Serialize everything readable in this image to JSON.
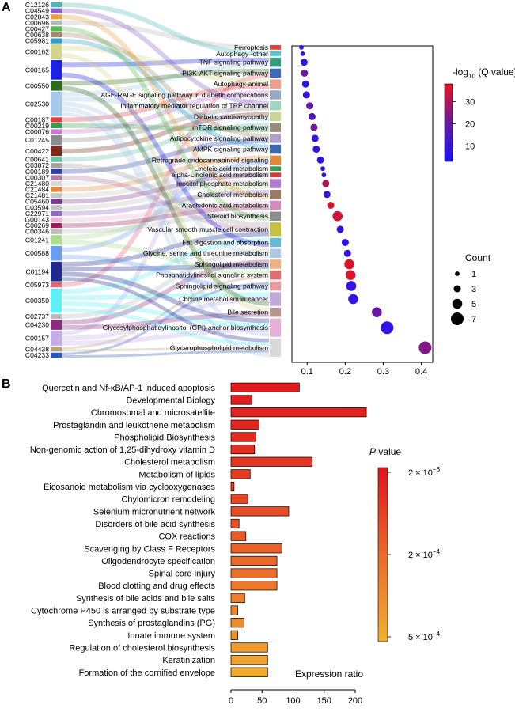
{
  "chart_data": [
    {
      "panel": "A",
      "type": "scatter",
      "subtype": "sankey-dot-plot",
      "xlim": [
        0.06,
        0.43
      ],
      "x_ticks": [
        0.1,
        0.2,
        0.3,
        0.4
      ],
      "compounds": [
        {
          "id": "C12126",
          "weight": 1,
          "color": "#4fb7b4"
        },
        {
          "id": "C04549",
          "weight": 1,
          "color": "#8a5ec2"
        },
        {
          "id": "C02843",
          "weight": 1,
          "color": "#e6a33b"
        },
        {
          "id": "C00696",
          "weight": 1,
          "color": "#b6b6b6"
        },
        {
          "id": "C00427",
          "weight": 1,
          "color": "#59b64a"
        },
        {
          "id": "C00638",
          "weight": 1,
          "color": "#9f8a69"
        },
        {
          "id": "C05981",
          "weight": 1,
          "color": "#2f9bc9"
        },
        {
          "id": "C00162",
          "weight": 3,
          "color": "#d3d38b"
        },
        {
          "id": "C00165",
          "weight": 4,
          "color": "#1b22e0"
        },
        {
          "id": "C00550",
          "weight": 2,
          "color": "#2b6b1c"
        },
        {
          "id": "C02530",
          "weight": 5,
          "color": "#a6c8ea"
        },
        {
          "id": "C00187",
          "weight": 1,
          "color": "#e33b3b"
        },
        {
          "id": "C00219",
          "weight": 1,
          "color": "#3a9a52"
        },
        {
          "id": "C00076",
          "weight": 1,
          "color": "#c979d4"
        },
        {
          "id": "C01245",
          "weight": 2,
          "color": "#8c8c8c"
        },
        {
          "id": "C00422",
          "weight": 2,
          "color": "#7d2a1c"
        },
        {
          "id": "C00641",
          "weight": 1,
          "color": "#66c2a5"
        },
        {
          "id": "C03872",
          "weight": 1,
          "color": "#a3a3a3"
        },
        {
          "id": "C00189",
          "weight": 1,
          "color": "#2c3ea8"
        },
        {
          "id": "C00307",
          "weight": 1,
          "color": "#b07aa1"
        },
        {
          "id": "C21480",
          "weight": 1,
          "color": "#d9d9d9"
        },
        {
          "id": "C21484",
          "weight": 1,
          "color": "#e08a3c"
        },
        {
          "id": "C21481",
          "weight": 1,
          "color": "#c7c7c7"
        },
        {
          "id": "C05460",
          "weight": 1,
          "color": "#7a3b8c"
        },
        {
          "id": "C03594",
          "weight": 1,
          "color": "#c2c2c2"
        },
        {
          "id": "C22971",
          "weight": 1,
          "color": "#8e6bc2"
        },
        {
          "id": "G00143",
          "weight": 1,
          "color": "#e6b0d0"
        },
        {
          "id": "C00269",
          "weight": 1,
          "color": "#9a1f5c"
        },
        {
          "id": "C00346",
          "weight": 1,
          "color": "#bdbdbd"
        },
        {
          "id": "C01241",
          "weight": 2,
          "color": "#a8de8e"
        },
        {
          "id": "C00588",
          "weight": 3,
          "color": "#6c9ef0"
        },
        {
          "id": "C01194",
          "weight": 4,
          "color": "#1f2a8c"
        },
        {
          "id": "C05973",
          "weight": 1,
          "color": "#e8607a"
        },
        {
          "id": "C00350",
          "weight": 5,
          "color": "#5ef0f5"
        },
        {
          "id": "C02737",
          "weight": 1,
          "color": "#bcbcbc"
        },
        {
          "id": "C04230",
          "weight": 2,
          "color": "#8a2b7c"
        },
        {
          "id": "C00157",
          "weight": 3,
          "color": "#c5aee8"
        },
        {
          "id": "C04438",
          "weight": 1,
          "color": "#b8a07a"
        },
        {
          "id": "C04233",
          "weight": 1,
          "color": "#2a55b8"
        }
      ],
      "pathways": [
        {
          "name": "Ferroptosis",
          "weight": 1,
          "color": "#e0443c",
          "x": 0.085,
          "count": 1,
          "q": 8,
          "links": [
            3
          ]
        },
        {
          "name": "Autophagy -other",
          "weight": 1,
          "color": "#4fc6d2",
          "x": 0.088,
          "count": 1,
          "q": 7,
          "links": [
            0
          ]
        },
        {
          "name": "TNF signaling pathway",
          "weight": 2,
          "color": "#3a9a80",
          "x": 0.092,
          "count": 3,
          "q": 8,
          "links": [
            8,
            10
          ]
        },
        {
          "name": "PI3K-AKT signaling pathway",
          "weight": 2,
          "color": "#3c6ab8",
          "x": 0.093,
          "count": 3,
          "q": 20,
          "links": [
            9,
            32
          ]
        },
        {
          "name": "Autophagy-animal",
          "weight": 2,
          "color": "#e8a090",
          "x": 0.096,
          "count": 3,
          "q": 7,
          "links": [
            7,
            11
          ]
        },
        {
          "name": "AGE-RAGE signaling pathway in diabetic complications",
          "weight": 2,
          "color": "#9aa8c8",
          "x": 0.098,
          "count": 3,
          "q": 9,
          "links": [
            13,
            36
          ]
        },
        {
          "name": "Inflammatory mediator regulation of TRP channel",
          "weight": 2,
          "color": "#a0d6c0",
          "x": 0.107,
          "count": 3,
          "q": 18,
          "links": [
            1,
            14
          ]
        },
        {
          "name": "Diabetic cardiomyopathy",
          "weight": 2,
          "color": "#c8d890",
          "x": 0.113,
          "count": 3,
          "q": 14,
          "links": [
            15,
            10
          ]
        },
        {
          "name": "mTOR signaling pathway",
          "weight": 2,
          "color": "#9a8a7a",
          "x": 0.118,
          "count": 3,
          "q": 22,
          "links": [
            16,
            12
          ]
        },
        {
          "name": "Adipocytokine signaling pathway",
          "weight": 2,
          "color": "#b0a0c8",
          "x": 0.121,
          "count": 3,
          "q": 8,
          "links": [
            5,
            18
          ]
        },
        {
          "name": "AMPK signaling pathway",
          "weight": 2,
          "color": "#3a6ab0",
          "x": 0.124,
          "count": 3,
          "q": 9,
          "links": [
            6,
            20
          ]
        },
        {
          "name": "Retrograde endocannabinoid signaling",
          "weight": 2,
          "color": "#e08a3c",
          "x": 0.135,
          "count": 3,
          "q": 8,
          "links": [
            21,
            30
          ]
        },
        {
          "name": "Linoleic acid metabolism",
          "weight": 1,
          "color": "#3a9a52",
          "x": 0.141,
          "count": 1,
          "q": 6,
          "links": [
            22
          ]
        },
        {
          "name": "alpha-Linolenic acid metabolism",
          "weight": 1,
          "color": "#d43c3c",
          "x": 0.144,
          "count": 1,
          "q": 7,
          "links": [
            23
          ]
        },
        {
          "name": "Inositol phosphate metabolism",
          "weight": 2,
          "color": "#b07ad0",
          "x": 0.149,
          "count": 3,
          "q": 30,
          "links": [
            24,
            29
          ]
        },
        {
          "name": "Cholesterol metabolism",
          "weight": 2,
          "color": "#9a7a60",
          "x": 0.152,
          "count": 3,
          "q": 10,
          "links": [
            25,
            2
          ]
        },
        {
          "name": "Arachidonic acid metabolism",
          "weight": 2,
          "color": "#d88ac0",
          "x": 0.162,
          "count": 3,
          "q": 36,
          "links": [
            26,
            27
          ]
        },
        {
          "name": "Steroid biosynthesis",
          "weight": 2,
          "color": "#8c8c8c",
          "x": 0.18,
          "count": 5,
          "q": 34,
          "links": [
            28,
            4
          ]
        },
        {
          "name": "Vascular smooth muscle cell contraction",
          "weight": 3,
          "color": "#c8c040",
          "x": 0.187,
          "count": 3,
          "q": 8,
          "links": [
            17,
            19,
            31
          ]
        },
        {
          "name": "Fat digestion and absorption",
          "weight": 2,
          "color": "#6ab8d8",
          "x": 0.2,
          "count": 3,
          "q": 7,
          "links": [
            33,
            8
          ]
        },
        {
          "name": "Glycine, serine and threonine metabolism",
          "weight": 2,
          "color": "#b0c8e8",
          "x": 0.206,
          "count": 3,
          "q": 8,
          "links": [
            34,
            10
          ]
        },
        {
          "name": "Sphingolipid metabolism",
          "weight": 2,
          "color": "#f0b080",
          "x": 0.211,
          "count": 5,
          "q": 36,
          "links": [
            35,
            31
          ]
        },
        {
          "name": "Phosphatidylinositol signaling system",
          "weight": 2,
          "color": "#e07070",
          "x": 0.214,
          "count": 5,
          "q": 36,
          "links": [
            29,
            37
          ]
        },
        {
          "name": "Sphingolipid signaling pathway",
          "weight": 2,
          "color": "#e89aa0",
          "x": 0.216,
          "count": 5,
          "q": 8,
          "links": [
            38,
            30
          ]
        },
        {
          "name": "Choline metabolism in cancer",
          "weight": 3,
          "color": "#c0a8d8",
          "x": 0.221,
          "count": 5,
          "q": 8,
          "links": [
            33,
            36,
            9
          ]
        },
        {
          "name": "Bile secretion",
          "weight": 2,
          "color": "#b8958a",
          "x": 0.283,
          "count": 5,
          "q": 20,
          "links": [
            7,
            35
          ]
        },
        {
          "name": "Glycosylphosphatidylinositol (GPI)-anchor biosynthesis",
          "weight": 4,
          "color": "#e8b0d8",
          "x": 0.31,
          "count": 7,
          "q": 8,
          "links": [
            31,
            33,
            36,
            10
          ]
        },
        {
          "name": "Glycerophospholipid metabolism",
          "weight": 4,
          "color": "#d9d9d9",
          "x": 0.41,
          "count": 7,
          "q": 24,
          "links": [
            31,
            33,
            37,
            38,
            10
          ]
        }
      ],
      "color_legend": {
        "title": "-log",
        "title_sub": "10",
        "title_tail": " (Q value)",
        "ticks": [
          10,
          20,
          30
        ],
        "range": [
          3,
          38
        ]
      },
      "size_legend": {
        "title": "Count",
        "values": [
          1,
          3,
          5,
          7
        ]
      }
    },
    {
      "panel": "B",
      "type": "bar",
      "orientation": "horizontal",
      "xlabel": "Expression ratio",
      "xlim": [
        0,
        220
      ],
      "x_ticks": [
        0,
        50,
        100,
        150,
        200
      ],
      "categories": [
        "Quercetin and Nf-κB/AP-1 induced apoptosis",
        "Developmental Biology",
        "Chromosomal and microsatellite",
        "Prostaglandin and leukotriene metabolism",
        "Phospholipid Biosynthesis",
        "Non-genomic action of 1,25-dihydroxy vitamin D",
        "Cholesterol metabolism",
        "Metabolism of lipids",
        "Eicosanoid metabolism via cyclooxygenases",
        "Chylomicron remodeling",
        "Selenium micronutrient network",
        "Disorders of bile acid synthesis",
        "COX reactions",
        "Scavenging by Class F Receptors",
        "Oligodendrocyte specification",
        "Spinal cord injury",
        "Blood clotting and drug effects",
        "Synthesis of bile acids and bile salts",
        "Cytochrome P450 is arranged by substrate type",
        "Synthesis of prostaglandins (PG)",
        "Innate immune system",
        "Regulation of cholesterol biosynthesis",
        "Keratinization",
        "Formation of the cornified envelope"
      ],
      "values": [
        110,
        34,
        218,
        45,
        40,
        38,
        131,
        31,
        5,
        27,
        93,
        13,
        24,
        82,
        74,
        74,
        74,
        22,
        11,
        21,
        11,
        59,
        59,
        59
      ],
      "color_fraction": [
        0.04,
        0.06,
        0.08,
        0.1,
        0.14,
        0.17,
        0.2,
        0.23,
        0.26,
        0.3,
        0.33,
        0.36,
        0.4,
        0.45,
        0.5,
        0.55,
        0.6,
        0.64,
        0.7,
        0.74,
        0.78,
        0.84,
        0.9,
        0.96
      ],
      "color_legend": {
        "title_italic": "P",
        "title_tail": " value",
        "ticks": [
          "2 × 10",
          "2 × 10",
          "5 × 10"
        ],
        "exponents": [
          "−6",
          "−4",
          "−4"
        ],
        "tick_fraction": [
          0.0,
          0.5,
          1.0
        ]
      }
    }
  ],
  "panel_labels": [
    "A",
    "B"
  ]
}
